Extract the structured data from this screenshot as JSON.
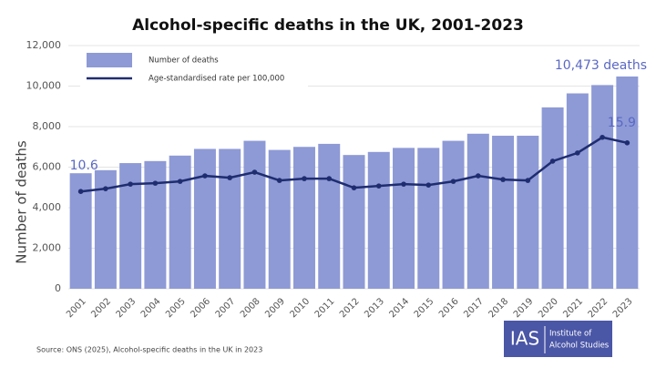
{
  "chart_data": {
    "type": "bar",
    "title": "Alcohol-specific deaths in the UK, 2001-2023",
    "ylabel": "Number of deaths",
    "categories": [
      "2001",
      "2002",
      "2003",
      "2004",
      "2005",
      "2006",
      "2007",
      "2008",
      "2009",
      "2010",
      "2011",
      "2012",
      "2013",
      "2014",
      "2015",
      "2016",
      "2017",
      "2018",
      "2019",
      "2020",
      "2021",
      "2022",
      "2023"
    ],
    "series": [
      {
        "name": "Number of deaths",
        "type": "bar",
        "color": "#8e9ad6",
        "values": [
          5700,
          5850,
          6200,
          6300,
          6570,
          6900,
          6900,
          7300,
          6850,
          7000,
          7150,
          6600,
          6750,
          6950,
          6950,
          7300,
          7650,
          7550,
          7550,
          8950,
          9640,
          10050,
          10473
        ],
        "value_labels": [
          null,
          null,
          null,
          null,
          null,
          null,
          null,
          null,
          null,
          null,
          null,
          null,
          null,
          null,
          null,
          null,
          null,
          null,
          null,
          null,
          null,
          null,
          "10,473 deaths"
        ]
      },
      {
        "name": "Age-standardised rate per 100,000",
        "type": "line",
        "axis": "y2",
        "color": "#1f2d70",
        "values": [
          10.6,
          10.9,
          11.4,
          11.5,
          11.7,
          12.3,
          12.1,
          12.7,
          11.8,
          12.0,
          12.0,
          11.0,
          11.2,
          11.4,
          11.3,
          11.7,
          12.3,
          11.9,
          11.8,
          13.9,
          14.8,
          16.5,
          15.9
        ],
        "value_labels": [
          "10.6",
          null,
          null,
          null,
          null,
          null,
          null,
          null,
          null,
          null,
          null,
          null,
          null,
          null,
          null,
          null,
          null,
          null,
          null,
          null,
          null,
          null,
          "15.9"
        ]
      }
    ],
    "ylim": [
      0,
      12000
    ],
    "yticks": [
      0,
      {
        "value": 2000,
        "label": "2,000"
      },
      {
        "value": 4000,
        "label": "4,000"
      },
      {
        "value": 6000,
        "label": "6,000"
      },
      {
        "value": 8000,
        "label": "8,000"
      },
      {
        "value": 10000,
        "label": "10,000"
      },
      {
        "value": 12000,
        "label": "12,000"
      }
    ],
    "y2lim": [
      0,
      26.5
    ],
    "grid": true,
    "legend": "upper left",
    "source": "Source: ONS (2025), Alcohol-specific deaths in the UK in 2023",
    "logo": {
      "abbr": "IAS",
      "name": [
        "Institute of",
        "Alcohol Studies"
      ]
    }
  }
}
